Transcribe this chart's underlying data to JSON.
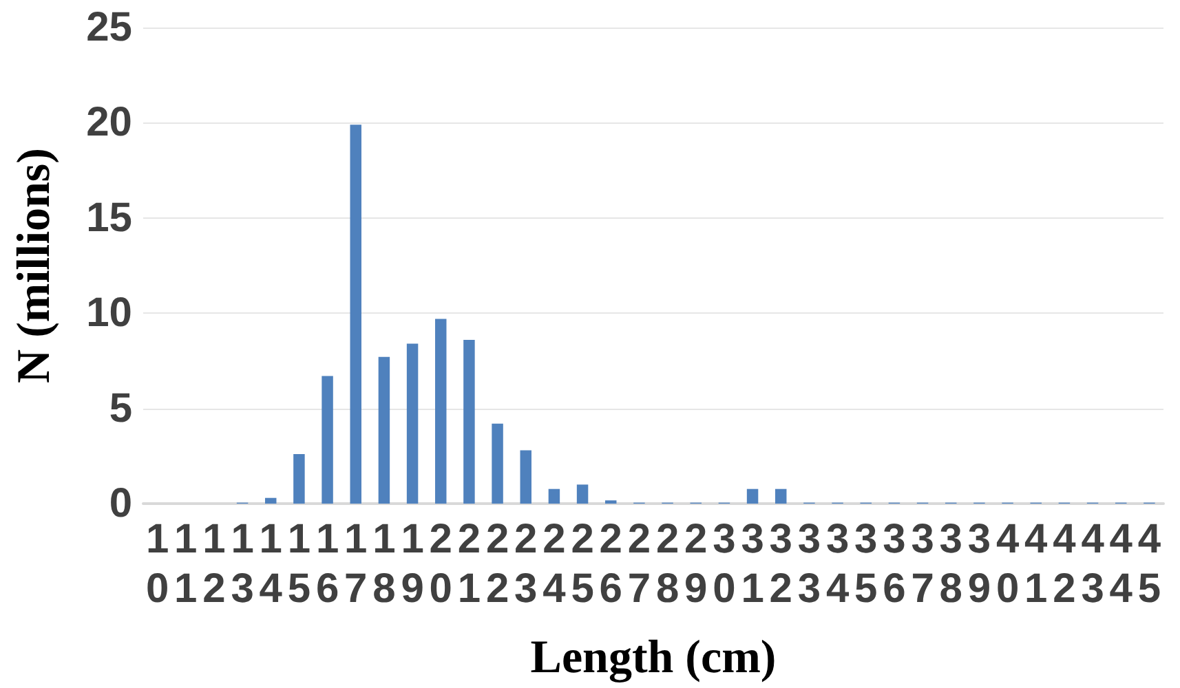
{
  "chart_data": {
    "type": "bar",
    "xlabel": "Length (cm)",
    "ylabel": "N (millions)",
    "categories": [
      "10",
      "11",
      "12",
      "13",
      "14",
      "15",
      "16",
      "17",
      "18",
      "19",
      "20",
      "21",
      "22",
      "23",
      "24",
      "25",
      "26",
      "27",
      "28",
      "29",
      "30",
      "31",
      "32",
      "33",
      "34",
      "35",
      "36",
      "37",
      "38",
      "39",
      "40",
      "41",
      "42",
      "43",
      "44",
      "45"
    ],
    "values": [
      0,
      0,
      0,
      0.05,
      0.3,
      2.6,
      6.7,
      19.9,
      7.7,
      8.4,
      9.7,
      8.6,
      4.2,
      2.8,
      0.77,
      1.0,
      0.17,
      0.05,
      0.05,
      0.05,
      0.05,
      0.77,
      0.77,
      0.05,
      0.05,
      0.05,
      0.05,
      0.05,
      0.05,
      0.05,
      0.05,
      0.05,
      0.05,
      0.05,
      0.05,
      0.05
    ],
    "color": "#4f81bd",
    "ylim": [
      0,
      25
    ],
    "yticks": [
      0,
      5,
      10,
      15,
      20,
      25
    ],
    "grid": "y"
  }
}
